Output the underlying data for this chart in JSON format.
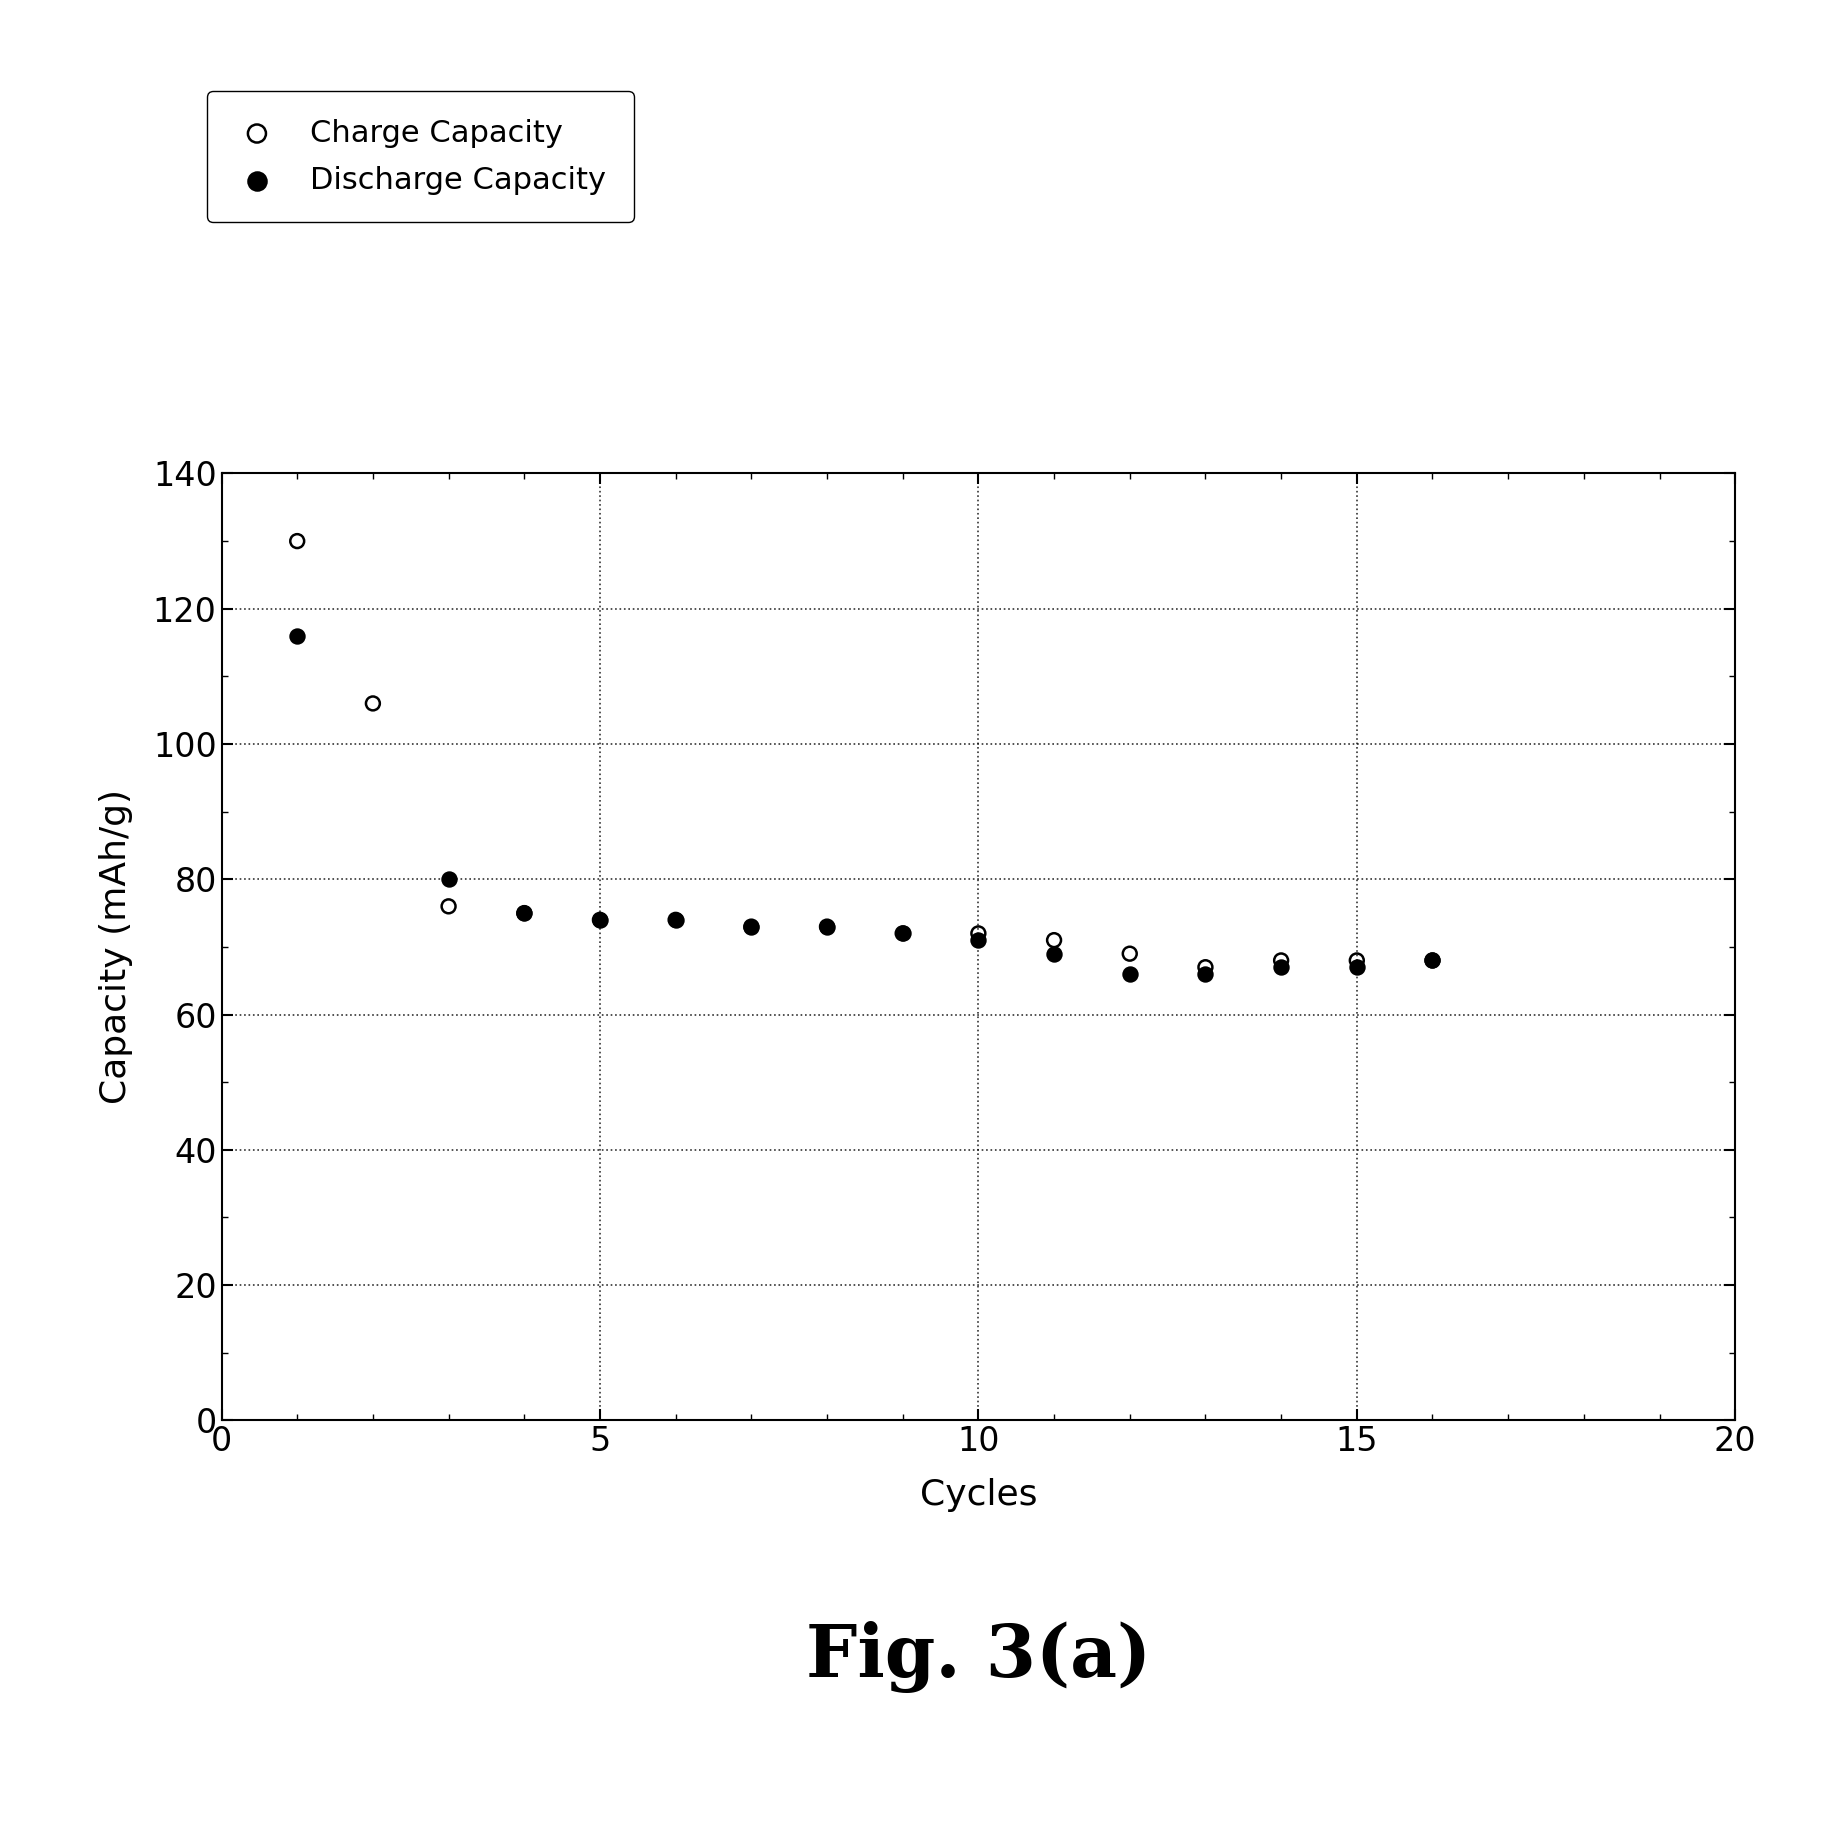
{
  "charge_x": [
    1,
    2,
    3,
    4,
    5,
    6,
    7,
    8,
    9,
    10,
    11,
    12,
    13,
    14,
    15,
    16
  ],
  "charge_y": [
    130,
    106,
    76,
    75,
    74,
    74,
    73,
    73,
    72,
    72,
    71,
    69,
    67,
    68,
    68,
    68
  ],
  "discharge_x": [
    1,
    3,
    4,
    5,
    6,
    7,
    8,
    9,
    10,
    11,
    12,
    13,
    14,
    15,
    16
  ],
  "discharge_y": [
    116,
    80,
    75,
    74,
    74,
    73,
    73,
    72,
    71,
    69,
    66,
    66,
    67,
    67,
    68
  ],
  "xlabel": "Cycles",
  "ylabel": "Capacity (mAh/g)",
  "legend_charge": "Charge Capacity",
  "legend_discharge": "Discharge Capacity",
  "figure_label": "Fig. 3(a)",
  "xlim": [
    0,
    20
  ],
  "ylim": [
    0,
    140
  ],
  "xticks": [
    0,
    5,
    10,
    15,
    20
  ],
  "yticks": [
    0,
    20,
    40,
    60,
    80,
    100,
    120,
    140
  ],
  "marker_size": 100,
  "background_color": "#ffffff",
  "grid_color": "#000000"
}
